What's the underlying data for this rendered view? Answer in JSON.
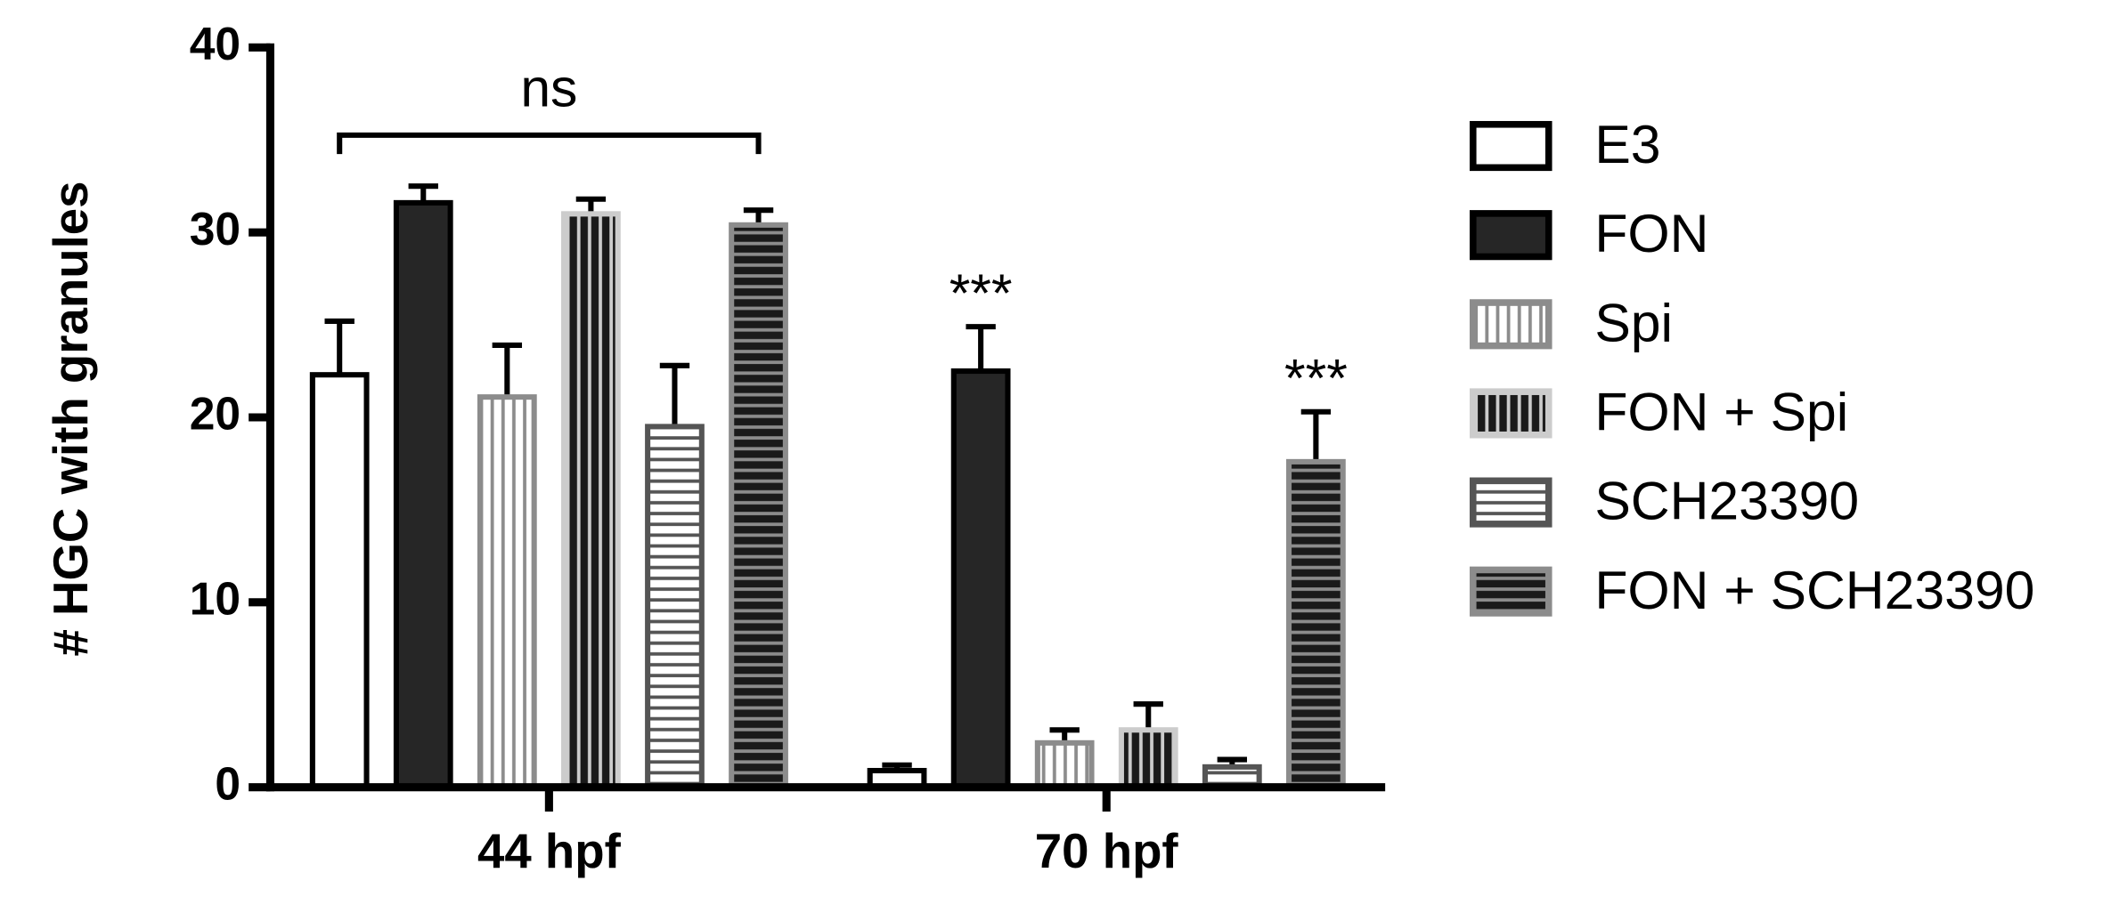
{
  "chart_data": {
    "type": "bar",
    "y_label": "# HGC with granules",
    "categories": [
      "44 hpf",
      "70 hpf"
    ],
    "ylim": [
      0,
      40
    ],
    "yticks": [
      0,
      10,
      20,
      30,
      40
    ],
    "grid": false,
    "legend": "right",
    "series": [
      {
        "name": "E3",
        "color": "#ffffff",
        "edge": "#000000",
        "pattern": "none",
        "values": [
          22.3,
          0.9
        ],
        "errors": [
          2.9,
          0.3
        ]
      },
      {
        "name": "FON",
        "color": "#262626",
        "edge": "#000000",
        "pattern": "none",
        "values": [
          31.6,
          22.5
        ],
        "errors": [
          0.9,
          2.4
        ]
      },
      {
        "name": "Spi",
        "color": "#ffffff",
        "edge": "#8c8c8c",
        "pattern": "vertical",
        "stripe": "#8c8c8c",
        "values": [
          21.1,
          2.4
        ],
        "errors": [
          2.8,
          0.7
        ]
      },
      {
        "name": "FON + Spi",
        "color": "#1a1a1a",
        "edge": "#cccccc",
        "pattern": "vertical",
        "stripe": "#cccccc",
        "values": [
          31.0,
          3.1
        ],
        "errors": [
          0.8,
          1.4
        ]
      },
      {
        "name": "SCH23390",
        "color": "#ffffff",
        "edge": "#555555",
        "pattern": "horizontal",
        "stripe": "#555555",
        "values": [
          19.5,
          1.1
        ],
        "errors": [
          3.3,
          0.4
        ]
      },
      {
        "name": "FON + SCH23390",
        "color": "#1a1a1a",
        "edge": "#8c8c8c",
        "pattern": "horizontal",
        "stripe": "#8c8c8c",
        "values": [
          30.4,
          17.6
        ],
        "errors": [
          0.8,
          2.7
        ]
      }
    ],
    "annotations": [
      {
        "text": "ns"
      },
      {
        "text": "***"
      },
      {
        "text": "***"
      }
    ]
  }
}
